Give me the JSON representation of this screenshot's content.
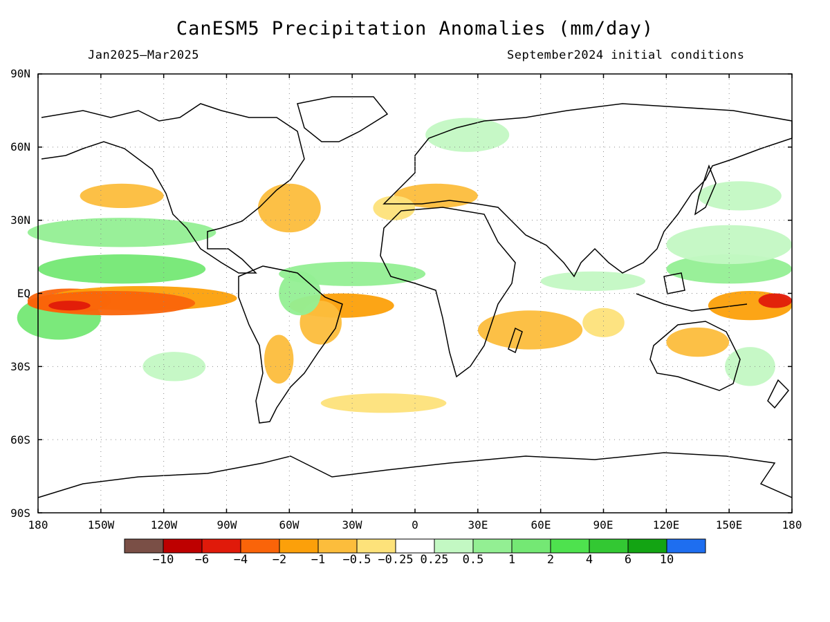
{
  "header": {
    "title": "CanESM5 Precipitation Anomalies (mm/day)",
    "period": "Jan2025—Mar2025",
    "init": "September2024 initial conditions"
  },
  "axes": {
    "lat_labels": [
      "90N",
      "60N",
      "30N",
      "EQ",
      "30S",
      "60S",
      "90S"
    ],
    "lon_labels": [
      "180",
      "150W",
      "120W",
      "90W",
      "60W",
      "30W",
      "0",
      "30E",
      "60E",
      "90E",
      "120E",
      "150E",
      "180"
    ]
  },
  "colorbar": {
    "colors": [
      "#7a4f46",
      "#be0000",
      "#e01a0a",
      "#fa6409",
      "#fca00a",
      "#fcbd3c",
      "#fde27a",
      "#ffffff",
      "#c3f8c3",
      "#93ef93",
      "#74e874",
      "#4ee24e",
      "#33c833",
      "#13a413",
      "#1e6ef0"
    ],
    "labels": [
      "−10",
      "−6",
      "−4",
      "−2",
      "−1",
      "−0.5",
      "−0.25",
      "0.25",
      "0.5",
      "1",
      "2",
      "4",
      "6",
      "10"
    ]
  },
  "anomalies": [
    {
      "type": "wet",
      "lon": -170,
      "lat": -10,
      "rx": 20,
      "ry": 9,
      "level": 3
    },
    {
      "type": "dry",
      "lon": -165,
      "lat": -3,
      "rx": 20,
      "ry": 5,
      "level": 4
    },
    {
      "type": "dry",
      "lon": -130,
      "lat": -2,
      "rx": 45,
      "ry": 5,
      "level": 3
    },
    {
      "type": "dry",
      "lon": -145,
      "lat": -4,
      "rx": 40,
      "ry": 5,
      "level": 4
    },
    {
      "type": "dry",
      "lon": -165,
      "lat": -5,
      "rx": 10,
      "ry": 2,
      "level": 5
    },
    {
      "type": "wet",
      "lon": -140,
      "lat": 10,
      "rx": 40,
      "ry": 6,
      "level": 3
    },
    {
      "type": "wet",
      "lon": -140,
      "lat": 25,
      "rx": 45,
      "ry": 6,
      "level": 2
    },
    {
      "type": "dry",
      "lon": -140,
      "lat": 40,
      "rx": 20,
      "ry": 5,
      "level": 2
    },
    {
      "type": "dry",
      "lon": -60,
      "lat": 35,
      "rx": 15,
      "ry": 10,
      "level": 2
    },
    {
      "type": "dry",
      "lon": -35,
      "lat": -5,
      "rx": 25,
      "ry": 5,
      "level": 3
    },
    {
      "type": "dry",
      "lon": -45,
      "lat": -12,
      "rx": 10,
      "ry": 9,
      "level": 2
    },
    {
      "type": "dry",
      "lon": -65,
      "lat": -27,
      "rx": 7,
      "ry": 10,
      "level": 2
    },
    {
      "type": "dry",
      "lon": -15,
      "lat": -45,
      "rx": 30,
      "ry": 4,
      "level": 1
    },
    {
      "type": "wet",
      "lon": -55,
      "lat": 0,
      "rx": 10,
      "ry": 9,
      "level": 2
    },
    {
      "type": "wet",
      "lon": -30,
      "lat": 8,
      "rx": 35,
      "ry": 5,
      "level": 2
    },
    {
      "type": "dry",
      "lon": 10,
      "lat": 40,
      "rx": 20,
      "ry": 5,
      "level": 2
    },
    {
      "type": "dry",
      "lon": 55,
      "lat": -15,
      "rx": 25,
      "ry": 8,
      "level": 2
    },
    {
      "type": "dry",
      "lon": 90,
      "lat": -12,
      "rx": 10,
      "ry": 6,
      "level": 1
    },
    {
      "type": "dry",
      "lon": 160,
      "lat": -5,
      "rx": 20,
      "ry": 6,
      "level": 3
    },
    {
      "type": "dry",
      "lon": 172,
      "lat": -3,
      "rx": 8,
      "ry": 3,
      "level": 5
    },
    {
      "type": "wet",
      "lon": 150,
      "lat": 10,
      "rx": 30,
      "ry": 6,
      "level": 2
    },
    {
      "type": "wet",
      "lon": 150,
      "lat": 20,
      "rx": 30,
      "ry": 8,
      "level": 1
    },
    {
      "type": "wet",
      "lon": 155,
      "lat": 40,
      "rx": 20,
      "ry": 6,
      "level": 1
    },
    {
      "type": "wet",
      "lon": 85,
      "lat": 5,
      "rx": 25,
      "ry": 4,
      "level": 1
    },
    {
      "type": "wet",
      "lon": 25,
      "lat": 65,
      "rx": 20,
      "ry": 7,
      "level": 1
    },
    {
      "type": "dry",
      "lon": 135,
      "lat": -20,
      "rx": 15,
      "ry": 6,
      "level": 2
    },
    {
      "type": "wet",
      "lon": 160,
      "lat": -30,
      "rx": 12,
      "ry": 8,
      "level": 1
    },
    {
      "type": "wet",
      "lon": -115,
      "lat": -30,
      "rx": 15,
      "ry": 6,
      "level": 1
    },
    {
      "type": "dry",
      "lon": -10,
      "lat": 35,
      "rx": 10,
      "ry": 5,
      "level": 1
    }
  ]
}
